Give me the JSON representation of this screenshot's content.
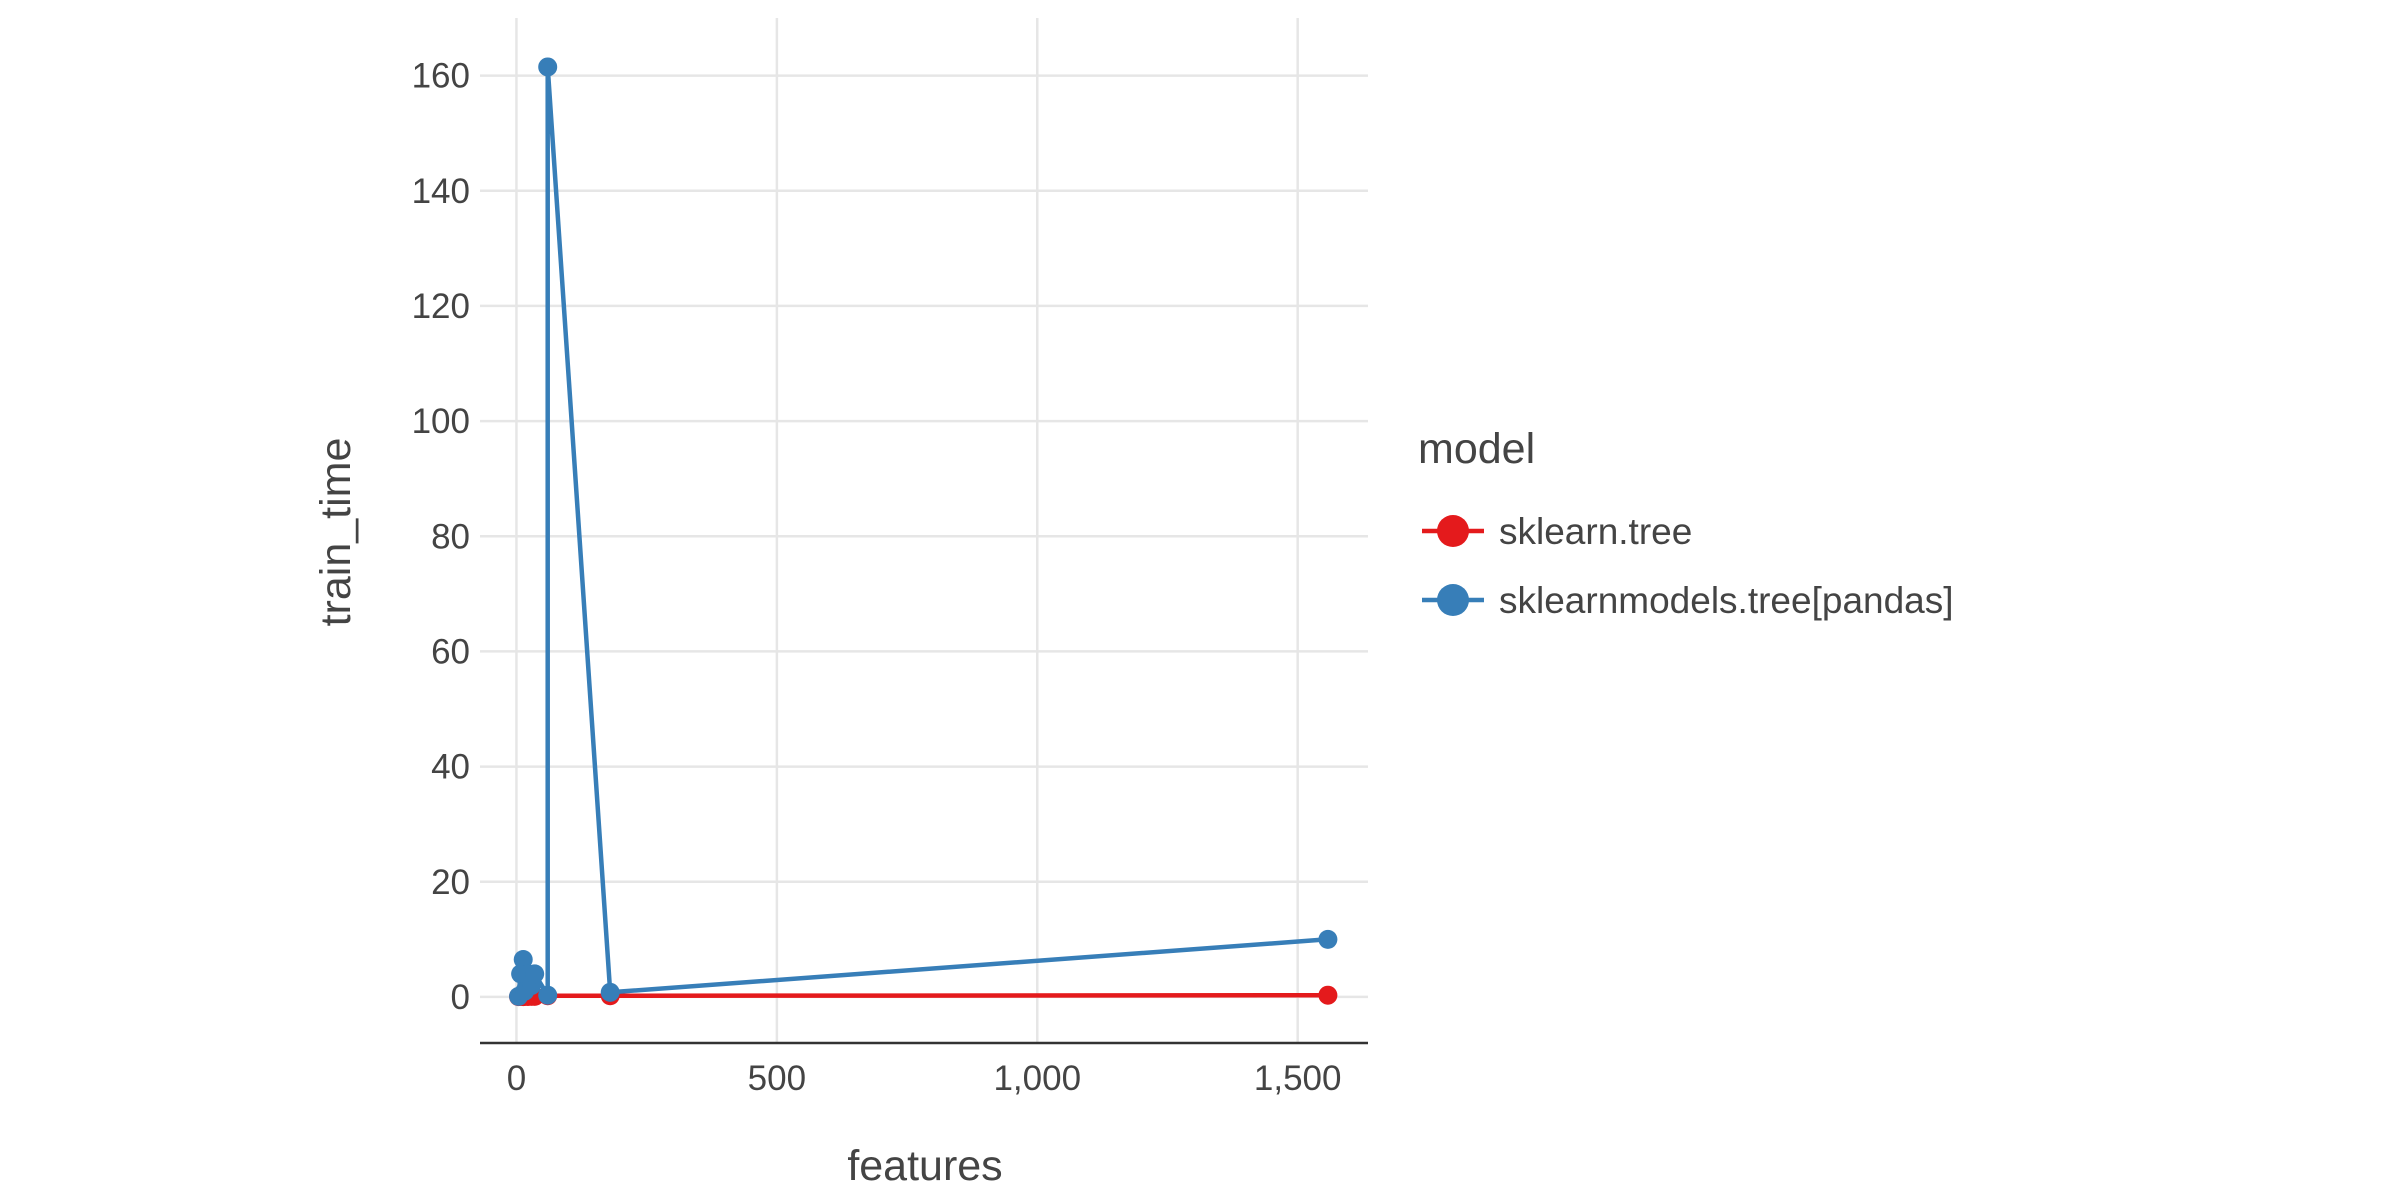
{
  "chart_data": {
    "type": "line",
    "title": "",
    "xlabel": "features",
    "ylabel": "train_time",
    "xlim": [
      -70,
      1635
    ],
    "ylim": [
      -8,
      170
    ],
    "x_ticks": [
      0,
      500,
      1000,
      1500
    ],
    "x_tick_labels": [
      "0",
      "500",
      "1,000",
      "1,500"
    ],
    "y_ticks": [
      0,
      20,
      40,
      60,
      80,
      100,
      120,
      140,
      160
    ],
    "y_tick_labels": [
      "0",
      "20",
      "40",
      "60",
      "80",
      "100",
      "120",
      "140",
      "160"
    ],
    "grid": true,
    "legend": {
      "title": "model",
      "placement": "right"
    },
    "series": [
      {
        "name": "sklearn.tree",
        "color": "#e41a1c",
        "x": [
          4,
          8,
          13,
          16,
          22,
          29,
          35,
          60,
          180,
          1558
        ],
        "y": [
          0.05,
          0.1,
          0.05,
          0.1,
          0.08,
          0.1,
          0.1,
          0.2,
          0.2,
          0.3
        ]
      },
      {
        "name": "sklearnmodels.tree[pandas]",
        "color": "#377eb8",
        "x": [
          4,
          8,
          13,
          16,
          22,
          29,
          35,
          60,
          60,
          180,
          1558
        ],
        "y": [
          0.1,
          4,
          6.5,
          1,
          4,
          2,
          4,
          0.3,
          161.5,
          0.8,
          10
        ]
      }
    ]
  }
}
